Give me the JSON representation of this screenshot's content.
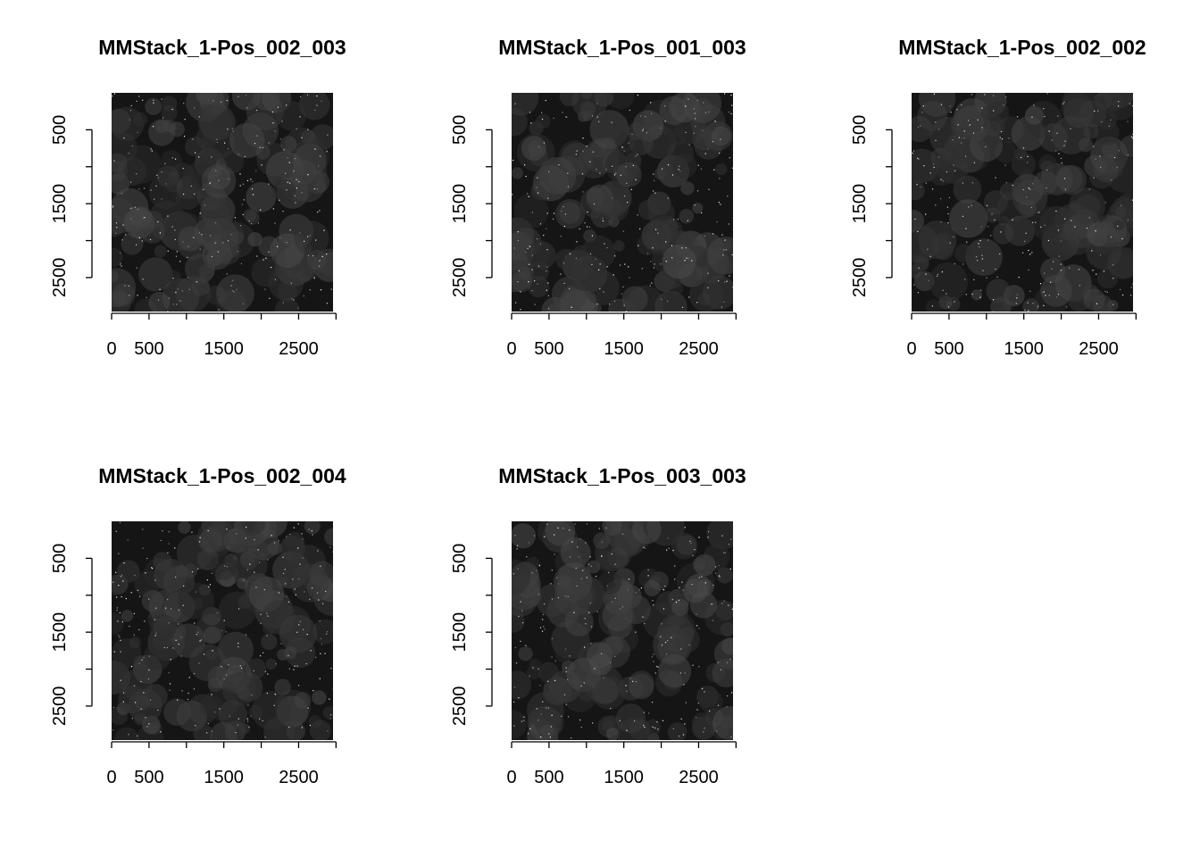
{
  "chart_data": [
    {
      "type": "image",
      "title": "MMStack_1-Pos_002_003",
      "xlim": [
        0,
        2960
      ],
      "ylim": [
        2960,
        0
      ],
      "xticks": [
        0,
        500,
        {
          "value": 1000,
          "label": null
        },
        1500,
        {
          "value": 2000,
          "label": null
        },
        2500,
        {
          "value": 3000,
          "label": null
        }
      ],
      "yticks": [
        500,
        {
          "value": 1000,
          "label": null
        },
        1500,
        {
          "value": 2000,
          "label": null
        },
        2500
      ]
    },
    {
      "type": "image",
      "title": "MMStack_1-Pos_001_003",
      "xlim": [
        0,
        2960
      ],
      "ylim": [
        2960,
        0
      ],
      "xticks": [
        0,
        500,
        {
          "value": 1000,
          "label": null
        },
        1500,
        {
          "value": 2000,
          "label": null
        },
        2500,
        {
          "value": 3000,
          "label": null
        }
      ],
      "yticks": [
        500,
        {
          "value": 1000,
          "label": null
        },
        1500,
        {
          "value": 2000,
          "label": null
        },
        2500
      ]
    },
    {
      "type": "image",
      "title": "MMStack_1-Pos_002_002",
      "xlim": [
        0,
        2960
      ],
      "ylim": [
        2960,
        0
      ],
      "xticks": [
        0,
        500,
        {
          "value": 1000,
          "label": null
        },
        1500,
        {
          "value": 2000,
          "label": null
        },
        2500,
        {
          "value": 3000,
          "label": null
        }
      ],
      "yticks": [
        500,
        {
          "value": 1000,
          "label": null
        },
        1500,
        {
          "value": 2000,
          "label": null
        },
        2500
      ]
    },
    {
      "type": "image",
      "title": "MMStack_1-Pos_002_004",
      "xlim": [
        0,
        2960
      ],
      "ylim": [
        2960,
        0
      ],
      "xticks": [
        0,
        500,
        {
          "value": 1000,
          "label": null
        },
        1500,
        {
          "value": 2000,
          "label": null
        },
        2500,
        {
          "value": 3000,
          "label": null
        }
      ],
      "yticks": [
        500,
        {
          "value": 1000,
          "label": null
        },
        1500,
        {
          "value": 2000,
          "label": null
        },
        2500
      ]
    },
    {
      "type": "image",
      "title": "MMStack_1-Pos_003_003",
      "xlim": [
        0,
        2960
      ],
      "ylim": [
        2960,
        0
      ],
      "xticks": [
        0,
        500,
        {
          "value": 1000,
          "label": null
        },
        1500,
        {
          "value": 2000,
          "label": null
        },
        2500,
        {
          "value": 3000,
          "label": null
        }
      ],
      "yticks": [
        500,
        {
          "value": 1000,
          "label": null
        },
        1500,
        {
          "value": 2000,
          "label": null
        },
        2500
      ]
    }
  ]
}
